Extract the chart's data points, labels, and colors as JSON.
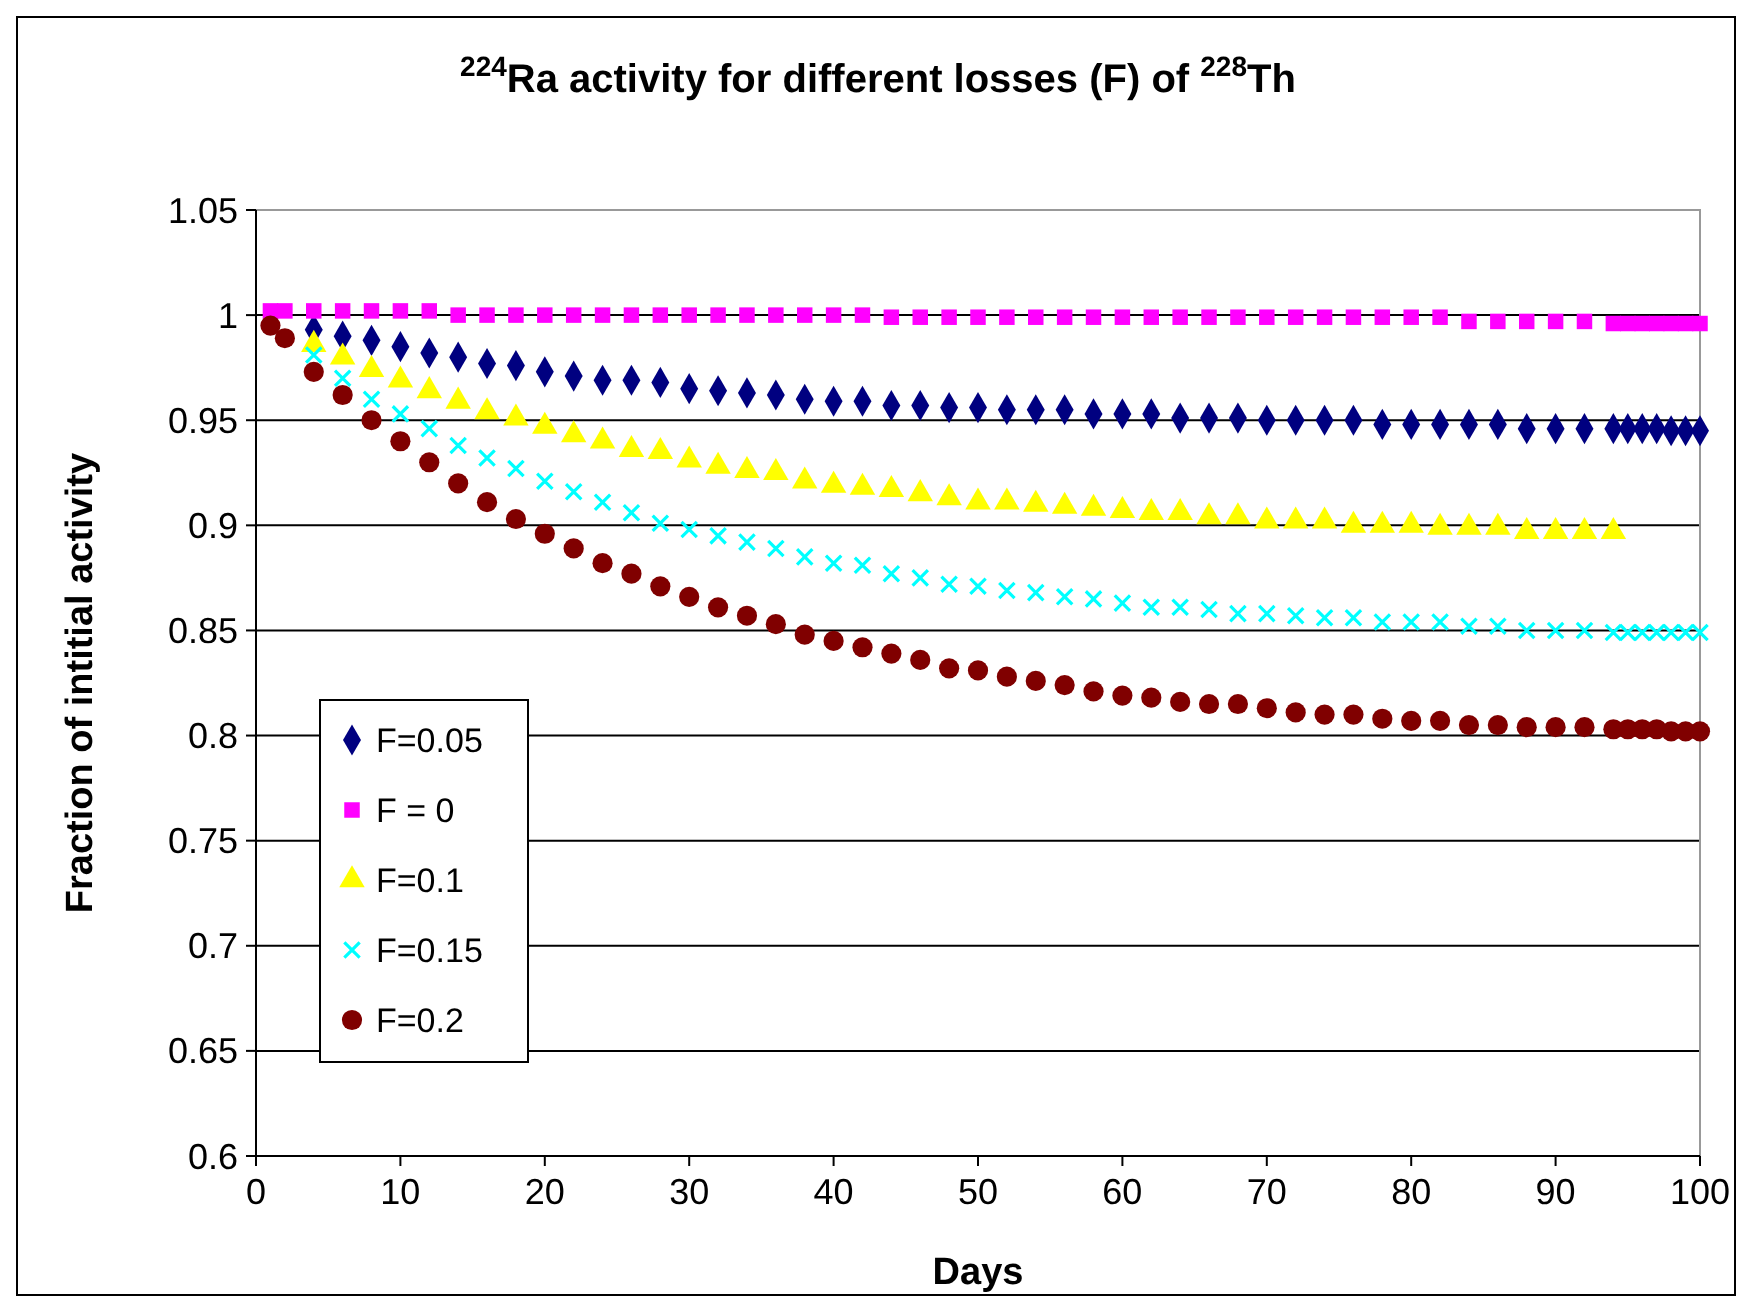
{
  "chart_data": {
    "type": "scatter",
    "title": "$^{224}$Ra activity for different losses (F) of $^{228}$Th",
    "xlabel": "Days",
    "ylabel": "Fraction of intitial  activity",
    "x": [
      1,
      2,
      4,
      6,
      8,
      10,
      12,
      14,
      16,
      18,
      20,
      22,
      24,
      26,
      28,
      30,
      32,
      34,
      36,
      38,
      40,
      42,
      44,
      46,
      48,
      50,
      52,
      54,
      56,
      58,
      60,
      62,
      64,
      66,
      68,
      70,
      72,
      74,
      76,
      78,
      80,
      82,
      84,
      86,
      88,
      90,
      92,
      94,
      95,
      96,
      97,
      98,
      99,
      100
    ],
    "series": [
      {
        "name": "F=0.05",
        "color": "#000080",
        "marker": "diamond",
        "values": [
          null,
          null,
          0.993,
          0.99,
          0.988,
          0.985,
          0.982,
          0.98,
          0.977,
          0.976,
          0.973,
          0.971,
          0.969,
          0.969,
          0.968,
          0.965,
          0.964,
          0.963,
          0.962,
          0.96,
          0.959,
          0.959,
          0.957,
          0.957,
          0.956,
          0.956,
          0.955,
          0.955,
          0.955,
          0.953,
          0.953,
          0.953,
          0.951,
          0.951,
          0.951,
          0.95,
          0.95,
          0.95,
          0.95,
          0.948,
          0.948,
          0.948,
          0.948,
          0.948,
          0.946,
          0.946,
          0.946,
          0.946,
          0.946,
          0.946,
          0.946,
          0.945,
          0.945,
          0.945
        ]
      },
      {
        "name": "F = 0",
        "color": "#ff00ff",
        "marker": "square",
        "values": [
          1.002,
          1.002,
          1.002,
          1.002,
          1.002,
          1.002,
          1.002,
          1.0,
          1.0,
          1.0,
          1.0,
          1.0,
          1.0,
          1.0,
          1.0,
          1.0,
          1.0,
          1.0,
          1.0,
          1.0,
          1.0,
          1.0,
          0.999,
          0.999,
          0.999,
          0.999,
          0.999,
          0.999,
          0.999,
          0.999,
          0.999,
          0.999,
          0.999,
          0.999,
          0.999,
          0.999,
          0.999,
          0.999,
          0.999,
          0.999,
          0.999,
          0.999,
          0.997,
          0.997,
          0.997,
          0.997,
          0.997,
          0.996,
          0.996,
          0.996,
          0.996,
          0.996,
          0.996,
          0.996
        ]
      },
      {
        "name": "F=0.1",
        "color": "#ffff00",
        "marker": "triangle",
        "values": [
          null,
          null,
          0.986,
          0.98,
          0.974,
          0.969,
          0.964,
          0.959,
          0.954,
          0.951,
          0.947,
          0.943,
          0.94,
          0.936,
          0.935,
          0.931,
          0.928,
          0.926,
          0.925,
          0.921,
          0.919,
          0.918,
          0.917,
          0.915,
          0.913,
          0.911,
          0.911,
          0.91,
          0.909,
          0.908,
          0.907,
          0.906,
          0.906,
          0.904,
          0.904,
          0.902,
          0.902,
          0.902,
          0.9,
          0.9,
          0.9,
          0.899,
          0.899,
          0.899,
          0.897,
          0.897,
          0.897,
          0.897,
          null,
          null,
          null,
          null,
          null,
          null
        ]
      },
      {
        "name": "F=0.15",
        "color": "#00ffff",
        "marker": "cross",
        "values": [
          null,
          null,
          0.981,
          0.97,
          0.96,
          0.953,
          0.946,
          0.938,
          0.932,
          0.927,
          0.921,
          0.916,
          0.911,
          0.906,
          0.901,
          0.898,
          0.895,
          0.892,
          0.889,
          0.885,
          0.882,
          0.881,
          0.877,
          0.875,
          0.872,
          0.871,
          0.869,
          0.868,
          0.866,
          0.865,
          0.863,
          0.861,
          0.861,
          0.86,
          0.858,
          0.858,
          0.857,
          0.856,
          0.856,
          0.854,
          0.854,
          0.854,
          0.852,
          0.852,
          0.85,
          0.85,
          0.85,
          0.849,
          0.849,
          0.849,
          0.849,
          0.849,
          0.849,
          0.849
        ]
      },
      {
        "name": "F=0.2",
        "color": "#800000",
        "marker": "circle",
        "values": [
          0.995,
          0.989,
          0.973,
          0.962,
          0.95,
          0.94,
          0.93,
          0.92,
          0.911,
          0.903,
          0.896,
          0.889,
          0.882,
          0.877,
          0.871,
          0.866,
          0.861,
          0.857,
          0.853,
          0.848,
          0.845,
          0.842,
          0.839,
          0.836,
          0.832,
          0.831,
          0.828,
          0.826,
          0.824,
          0.821,
          0.819,
          0.818,
          0.816,
          0.815,
          0.815,
          0.813,
          0.811,
          0.81,
          0.81,
          0.808,
          0.807,
          0.807,
          0.805,
          0.805,
          0.804,
          0.804,
          0.804,
          0.803,
          0.803,
          0.803,
          0.803,
          0.802,
          0.802,
          0.802
        ]
      }
    ],
    "xlim": [
      0,
      100
    ],
    "xticks": [
      0,
      10,
      20,
      30,
      40,
      50,
      60,
      70,
      80,
      90,
      100
    ],
    "ylim": [
      0.6,
      1.05
    ],
    "yticks": [
      0.6,
      0.65,
      0.7,
      0.75,
      0.8,
      0.85,
      0.9,
      0.95,
      1,
      1.05
    ],
    "grid": "y",
    "legend": "left"
  }
}
